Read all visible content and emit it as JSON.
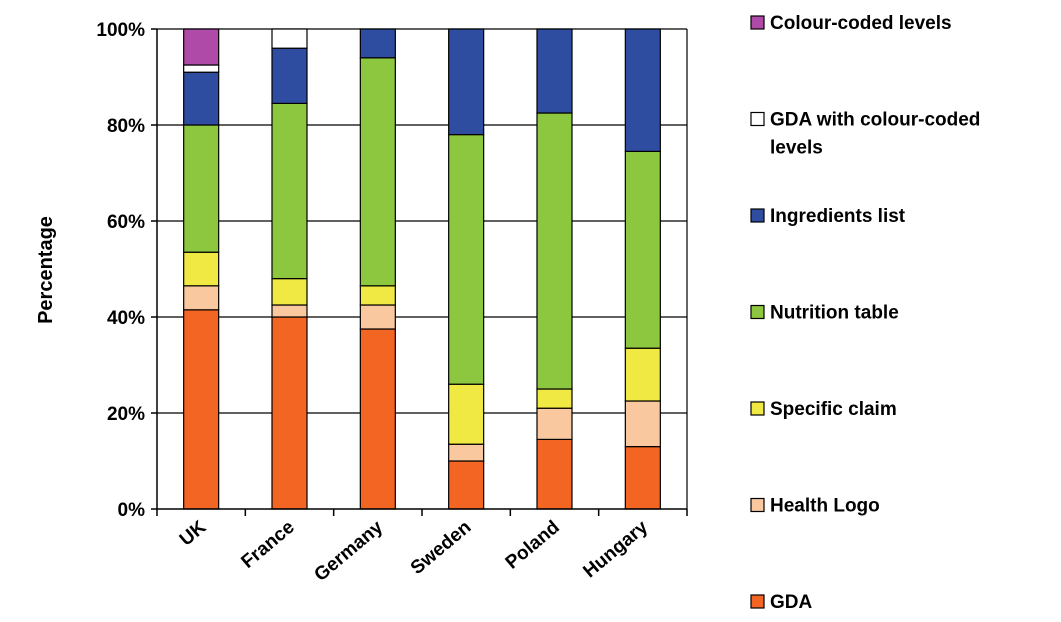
{
  "chart_data": {
    "type": "bar",
    "stacked": true,
    "categories": [
      "UK",
      "France",
      "Germany",
      "Sweden",
      "Poland",
      "Hungary"
    ],
    "ylabel": "Percentage",
    "xlabel": "",
    "ylim": [
      0,
      100
    ],
    "y_ticks": [
      "0%",
      "20%",
      "40%",
      "60%",
      "80%",
      "100%"
    ],
    "grid": true,
    "legend_position": "right",
    "series": [
      {
        "name": "GDA",
        "color": "#f26522",
        "values": [
          41.5,
          40,
          37.5,
          10,
          14.5,
          13
        ]
      },
      {
        "name": "Health Logo",
        "color": "#f9c89f",
        "values": [
          5,
          2.5,
          5,
          3.5,
          6.5,
          9.5
        ]
      },
      {
        "name": "Specific claim",
        "color": "#f0e843",
        "values": [
          7,
          5.5,
          4,
          12.5,
          4,
          11
        ]
      },
      {
        "name": "Nutrition table",
        "color": "#8dc63f",
        "values": [
          26.5,
          36.5,
          47.5,
          52,
          57.5,
          41
        ]
      },
      {
        "name": "Ingredients list",
        "color": "#2e4da1",
        "values": [
          11,
          11.5,
          6,
          22,
          17.5,
          25.5
        ]
      },
      {
        "name": "GDA with colour-coded levels",
        "color": "#ffffff",
        "values": [
          1.5,
          4,
          0,
          0,
          0,
          0
        ]
      },
      {
        "name": "Colour-coded levels",
        "color": "#b04aa8",
        "values": [
          7.5,
          0,
          0,
          0,
          0,
          0
        ]
      }
    ],
    "legend_order": [
      "Colour-coded levels",
      "GDA with colour-coded levels",
      "Ingredients list",
      "Nutrition table",
      "Specific claim",
      "Health Logo",
      "GDA"
    ],
    "legend_labels_wrapped": {
      "GDA with colour-coded levels": [
        "GDA with colour-coded",
        "levels"
      ]
    }
  }
}
